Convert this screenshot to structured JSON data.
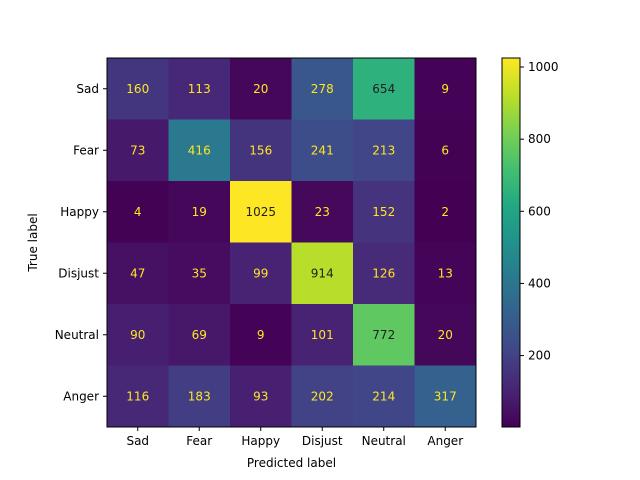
{
  "chart_data": {
    "type": "heatmap",
    "title": "",
    "xlabel": "Predicted label",
    "ylabel": "True label",
    "x_categories": [
      "Sad",
      "Fear",
      "Happy",
      "Disjust",
      "Neutral",
      "Anger"
    ],
    "y_categories": [
      "Sad",
      "Fear",
      "Happy",
      "Disjust",
      "Neutral",
      "Anger"
    ],
    "values": [
      [
        160,
        113,
        20,
        278,
        654,
        9
      ],
      [
        73,
        416,
        156,
        241,
        213,
        6
      ],
      [
        4,
        19,
        1025,
        23,
        152,
        2
      ],
      [
        47,
        35,
        99,
        914,
        126,
        13
      ],
      [
        90,
        69,
        9,
        101,
        772,
        20
      ],
      [
        116,
        183,
        93,
        202,
        214,
        317
      ]
    ],
    "colormap": "viridis",
    "color_range": [
      2,
      1025
    ],
    "colorbar_ticks": [
      200,
      400,
      600,
      800,
      1000
    ],
    "cell_text_colors": {
      "low": "#fde725",
      "high": "#1f1f1f"
    }
  }
}
